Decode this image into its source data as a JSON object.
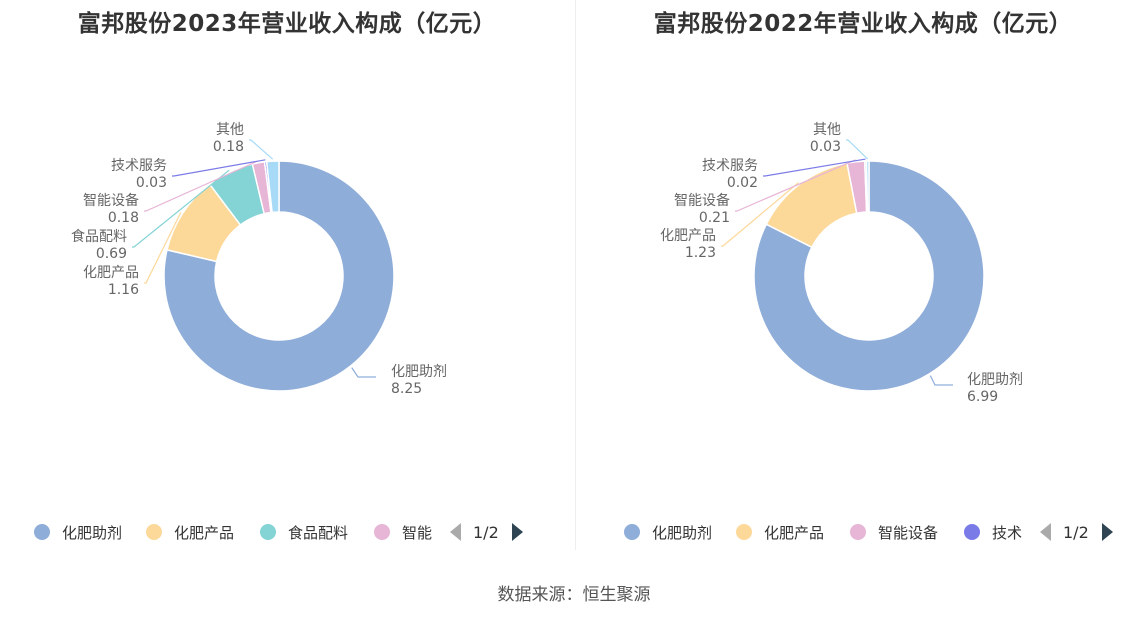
{
  "source_label": "数据来源：恒生聚源",
  "chart_data": [
    {
      "type": "pie",
      "style": "donut",
      "title": "富邦股份2023年营业收入构成（亿元）",
      "slices": [
        {
          "name": "化肥助剂",
          "value_label": "8.25",
          "value": 8.25,
          "color": "#8fadd9"
        },
        {
          "name": "化肥产品",
          "value_label": "1.16",
          "value": 1.16,
          "color": "#fcd899"
        },
        {
          "name": "食品配料",
          "value_label": "0.69",
          "value": 0.69,
          "color": "#84d3d5"
        },
        {
          "name": "智能设备",
          "value_label": "0.18",
          "value": 0.18,
          "color": "#e7b5d6"
        },
        {
          "name": "技术服务",
          "value_label": "0.03",
          "value": 0.03,
          "color": "#7b7be8"
        },
        {
          "name": "其他",
          "value_label": "0.18",
          "value": 0.18,
          "color": "#a6daf7"
        }
      ],
      "legend": {
        "position": "bottom",
        "visible_items": [
          "化肥助剂",
          "化肥产品",
          "食品配料",
          "智能"
        ],
        "page": "1/2"
      }
    },
    {
      "type": "pie",
      "style": "donut",
      "title": "富邦股份2022年营业收入构成（亿元）",
      "slices": [
        {
          "name": "化肥助剂",
          "value_label": "6.99",
          "value": 6.99,
          "color": "#8fadd9"
        },
        {
          "name": "化肥产品",
          "value_label": "1.23",
          "value": 1.23,
          "color": "#fcd899"
        },
        {
          "name": "智能设备",
          "value_label": "0.21",
          "value": 0.21,
          "color": "#e7b5d6"
        },
        {
          "name": "技术服务",
          "value_label": "0.02",
          "value": 0.02,
          "color": "#7b7be8"
        },
        {
          "name": "其他",
          "value_label": "0.03",
          "value": 0.03,
          "color": "#a6daf7"
        }
      ],
      "legend": {
        "position": "bottom",
        "visible_items": [
          "化肥助剂",
          "化肥产品",
          "智能设备",
          "技术"
        ],
        "page": "1/2"
      }
    }
  ]
}
